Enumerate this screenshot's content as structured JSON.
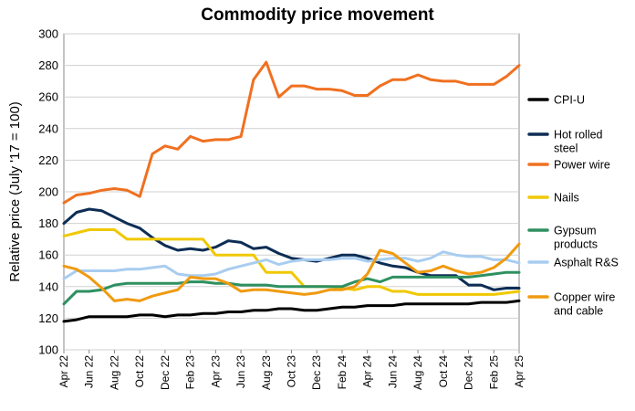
{
  "chart_data": {
    "type": "line",
    "title": "Commodity price movement",
    "xlabel": "",
    "ylabel": "Relative price (July '17 = 100)",
    "ylim": [
      100,
      300
    ],
    "yticks": [
      100,
      120,
      140,
      160,
      180,
      200,
      220,
      240,
      260,
      280,
      300
    ],
    "x": [
      "Apr 22",
      "May 22",
      "Jun 22",
      "Jul 22",
      "Aug 22",
      "Sep 22",
      "Oct 22",
      "Nov 22",
      "Dec 22",
      "Jan 23",
      "Feb 23",
      "Mar 23",
      "Apr 23",
      "May 23",
      "Jun 23",
      "Jul 23",
      "Aug 23",
      "Sep 23",
      "Oct 23",
      "Nov 23",
      "Dec 23",
      "Jan 24",
      "Feb 24",
      "Mar 24",
      "Apr 24",
      "May 24",
      "Jun 24",
      "Jul 24",
      "Aug 24",
      "Sep 24",
      "Oct 24",
      "Nov 24",
      "Dec 24",
      "Jan 25",
      "Feb 25",
      "Mar 25",
      "Apr 25"
    ],
    "xtick_labels": [
      "Apr 22",
      "Jun 22",
      "Aug 22",
      "Oct 22",
      "Dec 22",
      "Feb 23",
      "Apr 23",
      "Jun 23",
      "Aug 23",
      "Oct 23",
      "Dec 23",
      "Feb 24",
      "Apr 24",
      "Jun 24",
      "Aug 24",
      "Oct 24",
      "Dec 24",
      "Feb 25",
      "Apr 25"
    ],
    "series": [
      {
        "name": "Power wire",
        "color": "#f07020",
        "values": [
          193,
          198,
          199,
          201,
          202,
          201,
          197,
          224,
          229,
          227,
          235,
          232,
          233,
          233,
          235,
          271,
          282,
          260,
          267,
          267,
          265,
          265,
          264,
          261,
          261,
          267,
          271,
          271,
          274,
          271,
          270,
          270,
          268,
          268,
          268,
          273,
          280
        ]
      },
      {
        "name": "Hot rolled\nsteel",
        "color": "#0d2d55",
        "values": [
          180,
          187,
          189,
          188,
          184,
          180,
          177,
          171,
          166,
          163,
          164,
          163,
          165,
          169,
          168,
          164,
          165,
          161,
          158,
          157,
          156,
          158,
          160,
          160,
          158,
          155,
          153,
          152,
          149,
          147,
          147,
          147,
          141,
          141,
          138,
          139,
          139
        ]
      },
      {
        "name": "Nails",
        "color": "#f0c800",
        "values": [
          172,
          174,
          176,
          176,
          176,
          170,
          170,
          170,
          170,
          170,
          170,
          170,
          160,
          160,
          160,
          160,
          149,
          149,
          149,
          140,
          140,
          140,
          139,
          138,
          140,
          140,
          137,
          137,
          135,
          135,
          135,
          135,
          135,
          135,
          135,
          136,
          137
        ]
      },
      {
        "name": "Gypsum\nproducts",
        "color": "#2e9060",
        "values": [
          129,
          137,
          137,
          138,
          141,
          142,
          142,
          142,
          142,
          142,
          143,
          143,
          142,
          142,
          141,
          141,
          141,
          140,
          140,
          140,
          140,
          140,
          140,
          143,
          145,
          143,
          146,
          146,
          146,
          146,
          146,
          146,
          146,
          147,
          148,
          149,
          149
        ]
      },
      {
        "name": "Asphalt R&S",
        "color": "#a8cdf0",
        "values": [
          145,
          150,
          150,
          150,
          150,
          151,
          151,
          152,
          153,
          148,
          147,
          147,
          148,
          151,
          153,
          155,
          157,
          154,
          156,
          157,
          157,
          157,
          158,
          158,
          156,
          157,
          158,
          158,
          156,
          158,
          162,
          160,
          159,
          159,
          157,
          157,
          155
        ]
      },
      {
        "name": "Copper wire\nand cable",
        "color": "#f09a10",
        "values": [
          153,
          151,
          146,
          139,
          131,
          132,
          131,
          134,
          136,
          138,
          146,
          145,
          145,
          142,
          137,
          138,
          138,
          137,
          136,
          135,
          136,
          138,
          138,
          140,
          148,
          163,
          161,
          155,
          149,
          150,
          153,
          150,
          148,
          149,
          152,
          158,
          167
        ]
      },
      {
        "name": "CPI-U",
        "color": "#000000",
        "values": [
          118,
          119,
          121,
          121,
          121,
          121,
          122,
          122,
          121,
          122,
          122,
          123,
          123,
          124,
          124,
          125,
          125,
          126,
          126,
          125,
          125,
          126,
          127,
          127,
          128,
          128,
          128,
          129,
          129,
          129,
          129,
          129,
          129,
          130,
          130,
          130,
          131
        ]
      }
    ],
    "legend_order": [
      "CPI-U",
      "Hot rolled\nsteel",
      "Power wire",
      "Nails",
      "Gypsum\nproducts",
      "Asphalt R&S",
      "Copper wire\nand cable"
    ],
    "legend_position": "right",
    "grid": true
  }
}
